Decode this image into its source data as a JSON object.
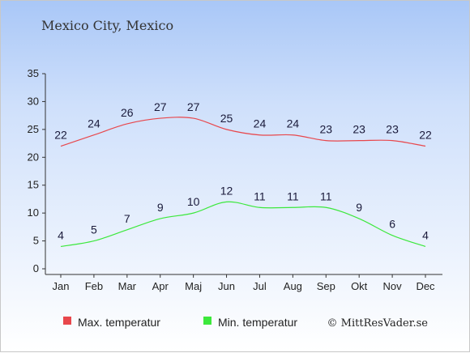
{
  "chart_data": {
    "type": "line",
    "title": "Mexico City, Mexico",
    "categories": [
      "Jan",
      "Feb",
      "Mar",
      "Apr",
      "Maj",
      "Jun",
      "Jul",
      "Aug",
      "Sep",
      "Okt",
      "Nov",
      "Dec"
    ],
    "series": [
      {
        "name": "Max. temperatur",
        "color": "#e8474c",
        "values": [
          22,
          24,
          26,
          27,
          27,
          25,
          24,
          24,
          23,
          23,
          23,
          22
        ]
      },
      {
        "name": "Min. temperatur",
        "color": "#3ce83c",
        "values": [
          4,
          5,
          7,
          9,
          10,
          12,
          11,
          11,
          11,
          9,
          6,
          4
        ]
      }
    ],
    "yticks": [
      0,
      5,
      10,
      15,
      20,
      25,
      30,
      35
    ],
    "ylim": [
      0,
      35
    ],
    "grid": false,
    "legend_position": "bottom"
  },
  "credit": "© MittResVader.se"
}
